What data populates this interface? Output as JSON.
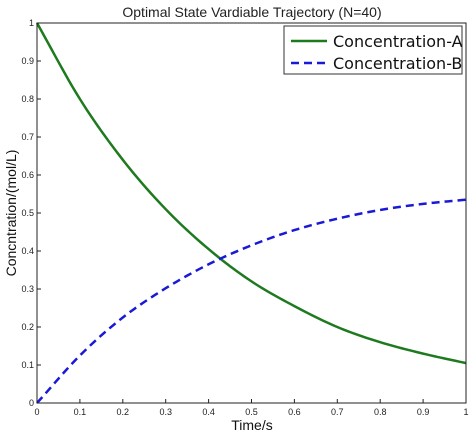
{
  "chart_data": {
    "type": "line",
    "title": "Optimal State Vardiable Trajectory (N=40)",
    "xlabel": "Time/s",
    "ylabel": "Concntration/(mol/L)",
    "xlim": [
      0,
      1
    ],
    "ylim": [
      0,
      1
    ],
    "xticks": [
      0,
      0.1,
      0.2,
      0.3,
      0.4,
      0.5,
      0.6,
      0.7,
      0.8,
      0.9,
      1
    ],
    "yticks": [
      0,
      0.1,
      0.2,
      0.3,
      0.4,
      0.5,
      0.6,
      0.7,
      0.8,
      0.9,
      1
    ],
    "xtick_labels": [
      "0",
      "0.1",
      "0.2",
      "0.3",
      "0.4",
      "0.5",
      "0.6",
      "0.7",
      "0.8",
      "0.9",
      "1"
    ],
    "ytick_labels": [
      "0",
      "0.1",
      "0.2",
      "0.3",
      "0.4",
      "0.5",
      "0.6",
      "0.7",
      "0.8",
      "0.9",
      "1"
    ],
    "grid": false,
    "legend_position": "top-right",
    "x": [
      0,
      0.1,
      0.2,
      0.3,
      0.4,
      0.5,
      0.6,
      0.7,
      0.8,
      0.9,
      1
    ],
    "series": [
      {
        "name": "Concentration-A",
        "color": "#1e7a1e",
        "style": "solid",
        "values": [
          1.0,
          0.8,
          0.64,
          0.51,
          0.405,
          0.32,
          0.255,
          0.2,
          0.16,
          0.13,
          0.105
        ]
      },
      {
        "name": "Concentration-B",
        "color": "#1a1ad6",
        "style": "dashed",
        "values": [
          0.0,
          0.125,
          0.225,
          0.302,
          0.365,
          0.415,
          0.455,
          0.485,
          0.508,
          0.524,
          0.535
        ]
      }
    ]
  }
}
